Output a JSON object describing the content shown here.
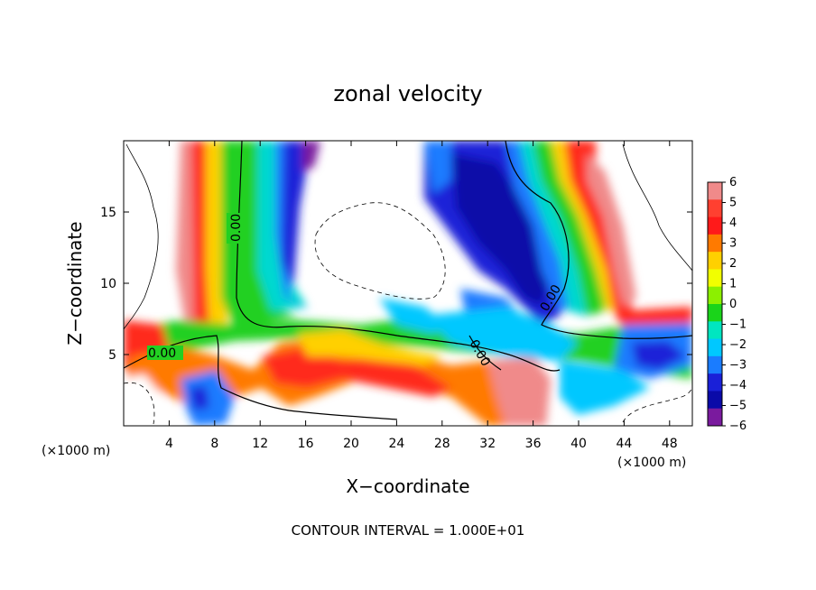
{
  "chart_data": {
    "type": "heatmap",
    "title": "zonal velocity",
    "xlabel": "X−coordinate",
    "ylabel": "Z−coordinate",
    "x_unit_left": "(×1000 m)",
    "x_unit_right": "(×1000 m)",
    "xlim": [
      0,
      50
    ],
    "ylim": [
      0,
      20
    ],
    "x_ticks": [
      4,
      8,
      12,
      16,
      20,
      24,
      28,
      32,
      36,
      40,
      44,
      48
    ],
    "y_ticks": [
      5,
      10,
      15
    ],
    "colorbar": {
      "ticks": [
        6,
        5,
        4,
        3,
        2,
        1,
        0,
        -1,
        -2,
        -3,
        -4,
        -5,
        -6
      ],
      "tick_labels": [
        "6",
        "5",
        "4",
        "3",
        "2",
        "1",
        "0",
        "−1",
        "−2",
        "−3",
        "−4",
        "−5",
        "−6"
      ],
      "range": [
        -6,
        6
      ],
      "colors": [
        "#f08a8a",
        "#ff4030",
        "#ff1a1a",
        "#ff7a00",
        "#ffd000",
        "#f2ff00",
        "#8cf000",
        "#1ad41a",
        "#00e6c0",
        "#00c8ff",
        "#1a7cff",
        "#1a20d8",
        "#0a0aa8",
        "#7a1a9e"
      ]
    },
    "contour_labels": [
      "0.00",
      "0.00",
      "0.00",
      "0.00"
    ],
    "annotation": "CONTOUR INTERVAL = 1.000E+01"
  }
}
